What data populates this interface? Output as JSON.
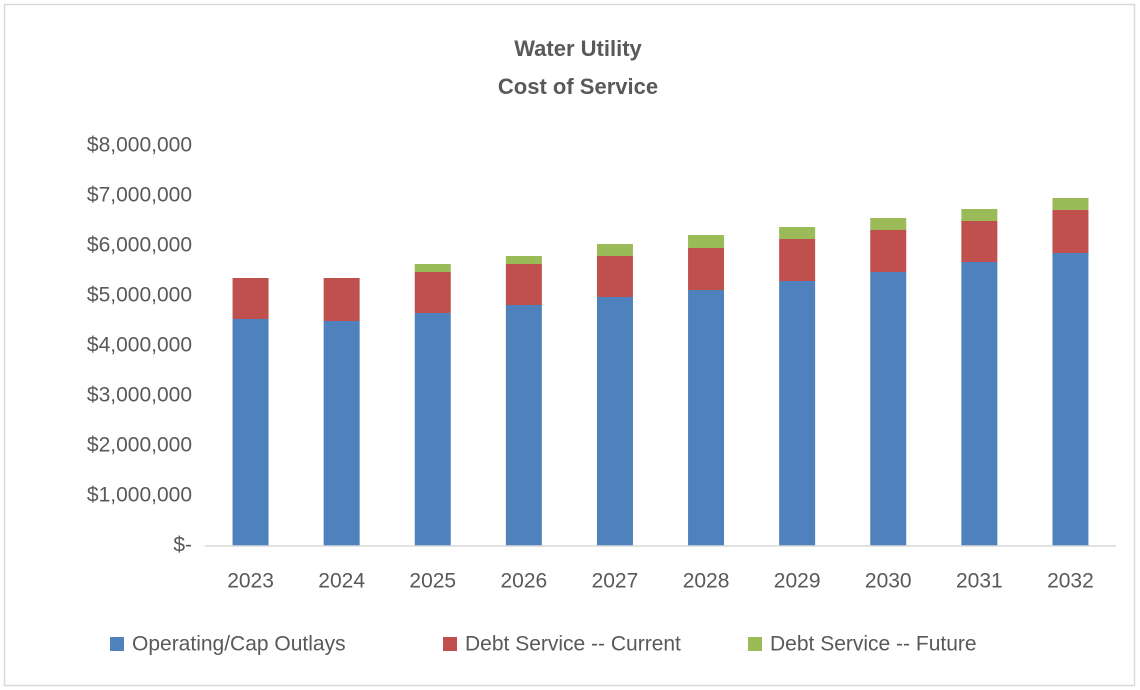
{
  "chart_data": {
    "type": "stacked-bar",
    "title": [
      "Water Utility",
      "Cost of Service"
    ],
    "categories": [
      "2023",
      "2024",
      "2025",
      "2026",
      "2027",
      "2028",
      "2029",
      "2030",
      "2031",
      "2032"
    ],
    "series": [
      {
        "name": "Operating/Cap Outlays",
        "color": "#4f81bd",
        "values": [
          4540000,
          4500000,
          4660000,
          4820000,
          4980000,
          5120000,
          5300000,
          5480000,
          5680000,
          5860000
        ]
      },
      {
        "name": "Debt Service -- Current",
        "color": "#c0504d",
        "values": [
          820000,
          860000,
          820000,
          820000,
          820000,
          840000,
          840000,
          840000,
          820000,
          860000
        ]
      },
      {
        "name": "Debt Service -- Future",
        "color": "#9bbb59",
        "values": [
          0,
          0,
          160000,
          160000,
          240000,
          260000,
          240000,
          240000,
          240000,
          240000
        ]
      }
    ],
    "ylim": [
      0,
      8000000
    ],
    "yticks": [
      {
        "value": 0,
        "label": "$-"
      },
      {
        "value": 1000000,
        "label": "$1,000,000"
      },
      {
        "value": 2000000,
        "label": "$2,000,000"
      },
      {
        "value": 3000000,
        "label": "$3,000,000"
      },
      {
        "value": 4000000,
        "label": "$4,000,000"
      },
      {
        "value": 5000000,
        "label": "$5,000,000"
      },
      {
        "value": 6000000,
        "label": "$6,000,000"
      },
      {
        "value": 7000000,
        "label": "$7,000,000"
      },
      {
        "value": 8000000,
        "label": "$8,000,000"
      }
    ],
    "grid": false,
    "legend": "bottom"
  }
}
